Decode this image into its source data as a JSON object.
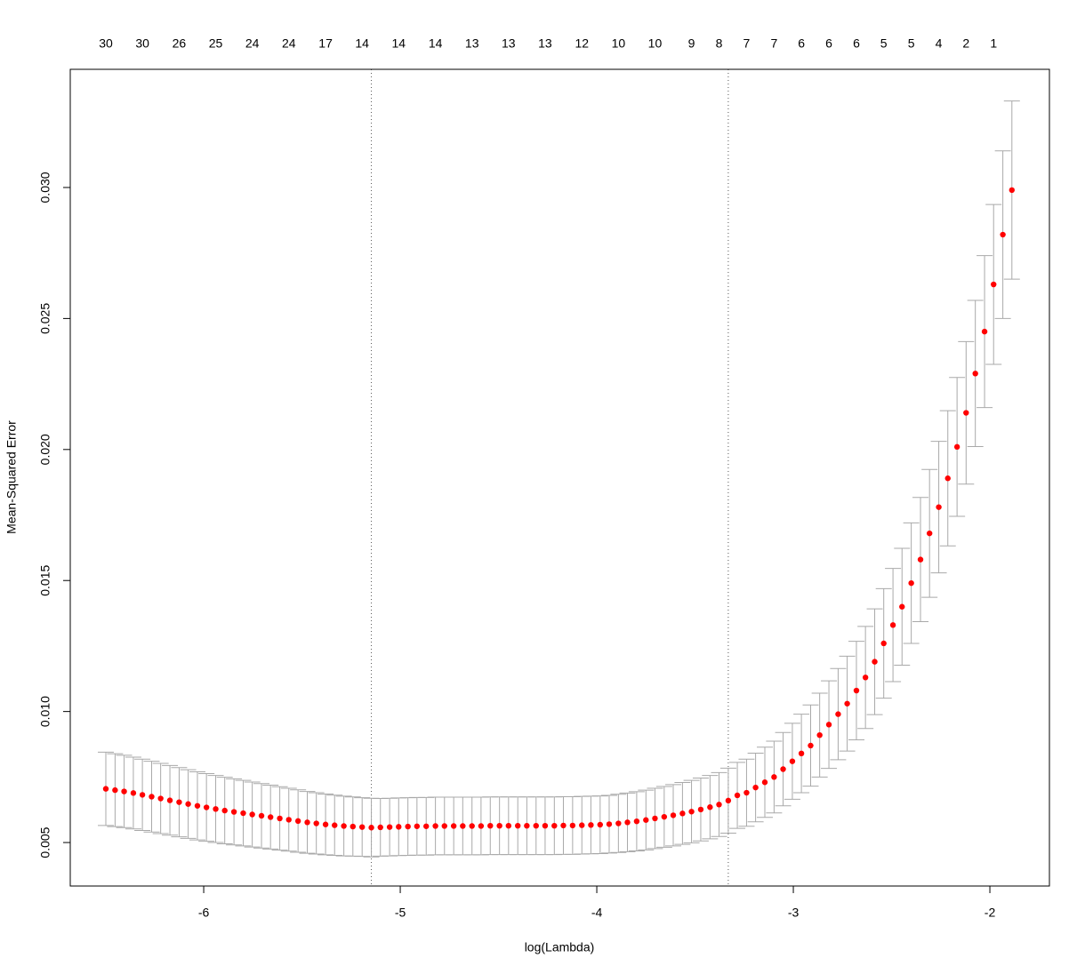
{
  "chart_data": {
    "type": "errorbar",
    "xlabel": "log(Lambda)",
    "ylabel": "Mean-Squared Error",
    "xlim": [
      -6.679,
      -1.697
    ],
    "ylim": [
      0.00334,
      0.03451
    ],
    "xticks": [
      -6,
      -5,
      -4,
      -3,
      -2
    ],
    "yticks": [
      0.005,
      {
        "value": 0.01,
        "label": "0.010"
      },
      0.015,
      {
        "value": 0.02,
        "label": "0.020"
      },
      0.025,
      {
        "value": 0.03,
        "label": "0.030"
      }
    ],
    "color": "#ff0000",
    "error_color": "#a9a9a9",
    "vlines": [
      -5.147,
      -3.331
    ],
    "top_x": [
      -6.498,
      -6.312,
      -6.125,
      -5.939,
      -5.753,
      -5.567,
      -5.38,
      -5.194,
      -5.008,
      -4.821,
      -4.635,
      -4.449,
      -4.263,
      -4.076,
      -3.89,
      -3.704,
      -3.518,
      -3.378,
      -3.238,
      -3.098,
      -2.959,
      -2.819,
      -2.679,
      -2.54,
      -2.4,
      -2.26,
      -2.121,
      -1.981
    ],
    "top_labels": [
      30,
      30,
      26,
      25,
      24,
      24,
      17,
      14,
      14,
      14,
      13,
      13,
      13,
      12,
      10,
      10,
      9,
      8,
      7,
      7,
      6,
      6,
      6,
      5,
      5,
      4,
      2,
      1
    ],
    "x": [
      -6.498,
      -6.451,
      -6.405,
      -6.358,
      -6.312,
      -6.265,
      -6.219,
      -6.172,
      -6.125,
      -6.079,
      -6.032,
      -5.986,
      -5.939,
      -5.893,
      -5.846,
      -5.799,
      -5.753,
      -5.706,
      -5.66,
      -5.613,
      -5.567,
      -5.52,
      -5.473,
      -5.427,
      -5.38,
      -5.334,
      -5.287,
      -5.241,
      -5.194,
      -5.147,
      -5.101,
      -5.054,
      -5.008,
      -4.961,
      -4.915,
      -4.868,
      -4.821,
      -4.775,
      -4.728,
      -4.682,
      -4.635,
      -4.589,
      -4.542,
      -4.495,
      -4.449,
      -4.402,
      -4.356,
      -4.309,
      -4.263,
      -4.216,
      -4.17,
      -4.123,
      -4.076,
      -4.03,
      -3.983,
      -3.937,
      -3.89,
      -3.844,
      -3.797,
      -3.75,
      -3.704,
      -3.657,
      -3.611,
      -3.564,
      -3.518,
      -3.471,
      -3.424,
      -3.378,
      -3.331,
      -3.285,
      -3.238,
      -3.192,
      -3.145,
      -3.098,
      -3.052,
      -3.005,
      -2.959,
      -2.912,
      -2.866,
      -2.819,
      -2.772,
      -2.726,
      -2.679,
      -2.633,
      -2.586,
      -2.54,
      -2.493,
      -2.447,
      -2.4,
      -2.353,
      -2.307,
      -2.26,
      -2.214,
      -2.167,
      -2.121,
      -2.074,
      -2.027,
      -1.981,
      -1.934,
      -1.888
    ],
    "values": [
      0.00705,
      0.007,
      0.00695,
      0.00689,
      0.00682,
      0.00675,
      0.00668,
      0.00661,
      0.00654,
      0.00647,
      0.0064,
      0.00634,
      0.00628,
      0.00622,
      0.00617,
      0.00612,
      0.00607,
      0.00602,
      0.00597,
      0.00592,
      0.00587,
      0.00582,
      0.00577,
      0.00573,
      0.00569,
      0.00566,
      0.00563,
      0.00561,
      0.00559,
      0.00557,
      0.00558,
      0.00559,
      0.0056,
      0.00561,
      0.00562,
      0.00562,
      0.00563,
      0.00563,
      0.00563,
      0.00563,
      0.00563,
      0.00563,
      0.00564,
      0.00564,
      0.00564,
      0.00564,
      0.00564,
      0.00564,
      0.00564,
      0.00564,
      0.00565,
      0.00565,
      0.00566,
      0.00567,
      0.00568,
      0.0057,
      0.00573,
      0.00577,
      0.00581,
      0.00586,
      0.00592,
      0.00598,
      0.00604,
      0.00611,
      0.00618,
      0.00626,
      0.00635,
      0.00645,
      0.0066,
      0.0068,
      0.0069,
      0.0071,
      0.0073,
      0.0075,
      0.0078,
      0.0081,
      0.0084,
      0.0087,
      0.0091,
      0.0095,
      0.0099,
      0.0103,
      0.0108,
      0.0113,
      0.0119,
      0.0126,
      0.0133,
      0.014,
      0.0149,
      0.0158,
      0.0168,
      0.0178,
      0.0189,
      0.0201,
      0.0214,
      0.0229,
      0.0245,
      0.0263,
      0.0282,
      0.0299
    ],
    "errors": [
      0.0014,
      0.00139,
      0.00138,
      0.00137,
      0.00136,
      0.00135,
      0.00134,
      0.00133,
      0.00132,
      0.00131,
      0.0013,
      0.00129,
      0.00128,
      0.00127,
      0.00126,
      0.00125,
      0.00124,
      0.00123,
      0.00122,
      0.00121,
      0.0012,
      0.00119,
      0.00118,
      0.00117,
      0.00116,
      0.00115,
      0.00114,
      0.00113,
      0.00112,
      0.00112,
      0.0011,
      0.0011,
      0.0011,
      0.0011,
      0.0011,
      0.0011,
      0.0011,
      0.0011,
      0.0011,
      0.0011,
      0.0011,
      0.0011,
      0.0011,
      0.0011,
      0.0011,
      0.0011,
      0.0011,
      0.0011,
      0.0011,
      0.0011,
      0.0011,
      0.0011,
      0.0011,
      0.0011,
      0.0011,
      0.0011,
      0.00111,
      0.00112,
      0.00113,
      0.00114,
      0.00115,
      0.00116,
      0.00117,
      0.00118,
      0.00119,
      0.0012,
      0.00121,
      0.00122,
      0.00124,
      0.00126,
      0.00128,
      0.00131,
      0.00134,
      0.00137,
      0.0014,
      0.00145,
      0.0015,
      0.00155,
      0.0016,
      0.00167,
      0.00174,
      0.00181,
      0.00188,
      0.00195,
      0.00202,
      0.00209,
      0.00216,
      0.00223,
      0.0023,
      0.00237,
      0.00244,
      0.00251,
      0.00258,
      0.00265,
      0.00272,
      0.00279,
      0.0029,
      0.00305,
      0.0032,
      0.0034
    ]
  }
}
